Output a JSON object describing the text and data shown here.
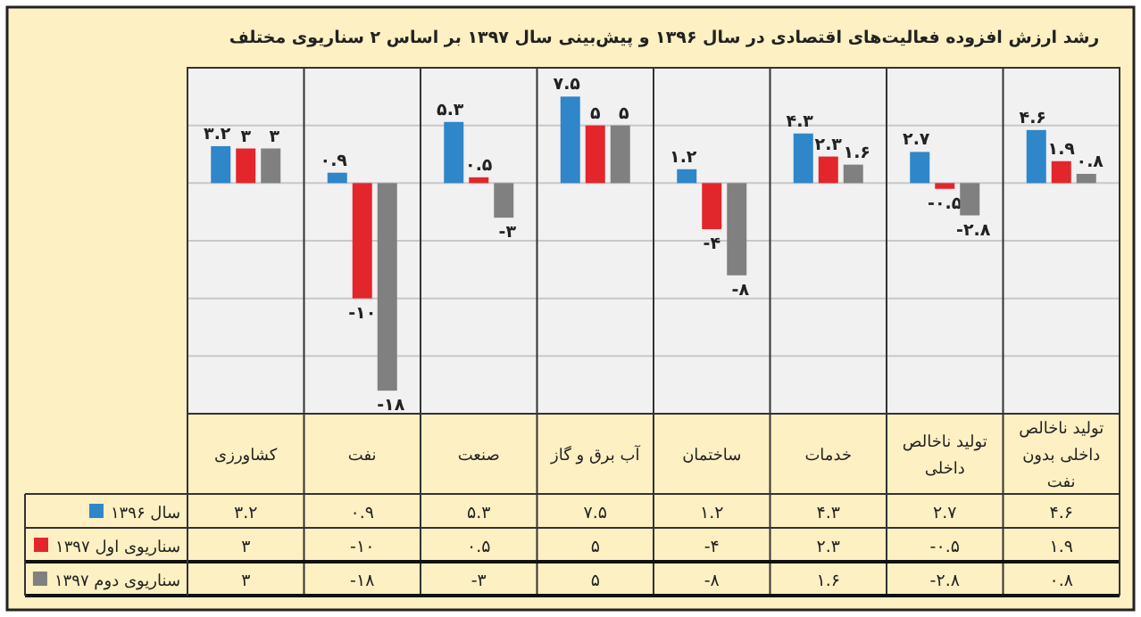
{
  "chart_data": {
    "type": "bar",
    "title": "رشد ارزش افزوده فعالیت‌های اقتصادی در سال ۱۳۹۶ و پیش‌بینی سال ۱۳۹۷ بر اساس ۲ سناریوی مختلف",
    "categories": [
      "کشاورزی",
      "نفت",
      "صنعت",
      "آب برق و گاز",
      "ساختمان",
      "خدمات",
      "تولید ناخالص داخلی",
      "تولید ناخالص داخلی بدون نفت"
    ],
    "series": [
      {
        "name": "سال ۱۳۹۶",
        "color": "#2f86c9",
        "values": [
          3.2,
          0.9,
          5.3,
          7.5,
          1.2,
          4.3,
          2.7,
          4.6
        ],
        "value_labels": [
          "۳.۲",
          "۰.۹",
          "۵.۳",
          "۷.۵",
          "۱.۲",
          "۴.۳",
          "۲.۷",
          "۴.۶"
        ]
      },
      {
        "name": "سناریوی اول ۱۳۹۷",
        "color": "#e3262b",
        "values": [
          3,
          -10,
          0.5,
          5,
          -4,
          2.3,
          -0.5,
          1.9
        ],
        "value_labels": [
          "۳",
          "-۱۰",
          "۰.۵",
          "۵",
          "-۴",
          "۲.۳",
          "-۰.۵",
          "۱.۹"
        ]
      },
      {
        "name": "سناریوی دوم ۱۳۹۷",
        "color": "#808080",
        "values": [
          3,
          -18,
          -3,
          5,
          -8,
          1.6,
          -2.8,
          0.8
        ],
        "value_labels": [
          "۳",
          "-۱۸",
          "-۳",
          "۵",
          "-۸",
          "۱.۶",
          "-۲.۸",
          "۰.۸"
        ]
      }
    ],
    "ylim": [
      -20,
      10
    ],
    "yticks": [
      {
        "value": -15,
        "label": null
      },
      {
        "value": -10,
        "label": null
      },
      {
        "value": -5,
        "label": null
      },
      {
        "value": 0,
        "label": null
      },
      {
        "value": 5,
        "label": null
      }
    ],
    "grid": "y",
    "legend": "bottom"
  }
}
